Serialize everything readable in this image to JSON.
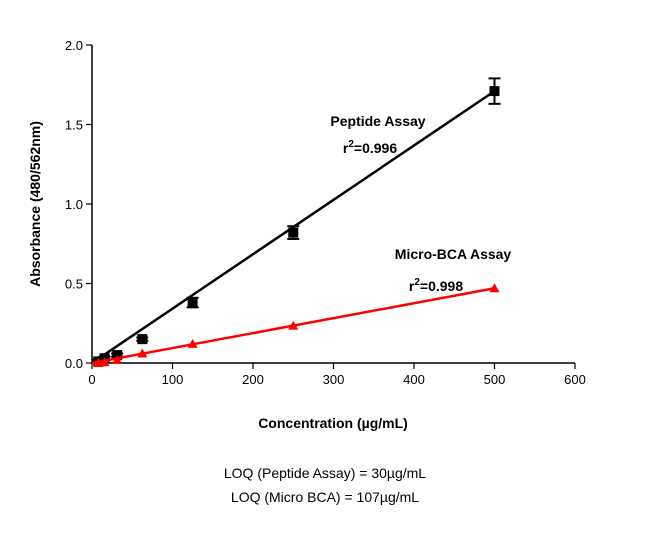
{
  "chart_data": {
    "type": "scatter",
    "title": "",
    "xlabel": "Concentration (µg/mL)",
    "ylabel": "Absorbance (480/562nm)",
    "xlim": [
      0,
      600
    ],
    "ylim": [
      0,
      2.0
    ],
    "xticks": [
      0,
      100,
      200,
      300,
      400,
      500,
      600
    ],
    "yticks": [
      "0.0",
      "0.5",
      "1.0",
      "1.5",
      "2.0"
    ],
    "grid": false,
    "series": [
      {
        "name": "Peptide Assay",
        "annotation": "r2=0.996",
        "color": "#000000",
        "marker": "square",
        "x": [
          7.8,
          15.6,
          31.25,
          62.5,
          125,
          250,
          500
        ],
        "y": [
          0.01,
          0.03,
          0.05,
          0.15,
          0.38,
          0.82,
          1.71
        ],
        "error": [
          0.01,
          0.01,
          0.01,
          0.01,
          0.03,
          0.04,
          0.08
        ],
        "fit": {
          "slope": 0.00344,
          "intercept": -0.01
        }
      },
      {
        "name": "Micro-BCA  Assay",
        "annotation": "r2=0.998",
        "color": "#ff0000",
        "marker": "triangle",
        "x": [
          7.8,
          15.6,
          31.25,
          62.5,
          125,
          250,
          500
        ],
        "y": [
          0.0,
          0.005,
          0.02,
          0.06,
          0.12,
          0.235,
          0.47
        ],
        "fit": {
          "slope": 0.00094,
          "intercept": 0.0
        }
      }
    ]
  },
  "notes": [
    "LOQ (Peptide Assay) = 30µg/mL",
    "LOQ (Micro BCA) = 107µg/mL"
  ]
}
